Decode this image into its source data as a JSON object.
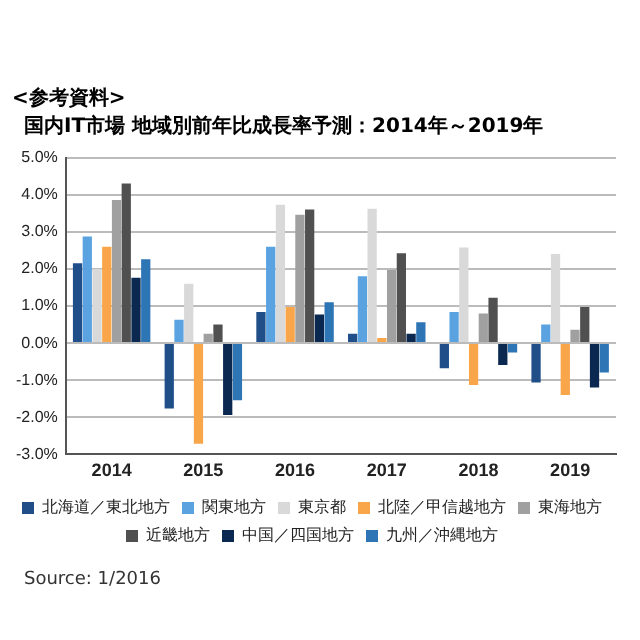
{
  "chart_data": {
    "type": "bar",
    "subtitle": "<参考資料>",
    "title": "国内IT市場 地域別前年比成長率予測：2014年～2019年",
    "categories": [
      "2014",
      "2015",
      "2016",
      "2017",
      "2018",
      "2019"
    ],
    "series": [
      {
        "name": "北海道／東北地方",
        "color": "#1f4e89",
        "values": [
          2.15,
          -1.76,
          0.84,
          0.25,
          -0.68,
          -1.06
        ]
      },
      {
        "name": "関東地方",
        "color": "#5ba3e0",
        "values": [
          2.87,
          0.63,
          2.6,
          1.8,
          0.84,
          0.5
        ]
      },
      {
        "name": "東京都",
        "color": "#d9d9d9",
        "values": [
          2.0,
          1.6,
          3.73,
          3.62,
          2.58,
          2.4
        ]
      },
      {
        "name": "北陸／甲信越地方",
        "color": "#f9a54a",
        "values": [
          2.6,
          -2.71,
          0.97,
          0.14,
          -1.13,
          -1.4
        ]
      },
      {
        "name": "東海地方",
        "color": "#a0a0a0",
        "values": [
          3.86,
          0.25,
          3.46,
          1.97,
          0.8,
          0.36
        ]
      },
      {
        "name": "近畿地方",
        "color": "#505050",
        "values": [
          4.3,
          0.5,
          3.6,
          2.42,
          1.22,
          0.97
        ]
      },
      {
        "name": "中国／四国地方",
        "color": "#0a2850",
        "values": [
          1.76,
          -1.94,
          0.77,
          0.25,
          -0.59,
          -1.2
        ]
      },
      {
        "name": "九州／沖縄地方",
        "color": "#2e75b6",
        "values": [
          2.26,
          -1.54,
          1.1,
          0.56,
          -0.25,
          -0.79
        ]
      }
    ],
    "ylim": [
      -3,
      5
    ],
    "yticks": [
      {
        "value": -3,
        "label": "-3.0%"
      },
      {
        "value": -2,
        "label": "-2.0%"
      },
      {
        "value": -1,
        "label": "-1.0%"
      },
      {
        "value": 0,
        "label": "0.0%"
      },
      {
        "value": 1,
        "label": "1.0%"
      },
      {
        "value": 2,
        "label": "2.0%"
      },
      {
        "value": 3,
        "label": "3.0%"
      },
      {
        "value": 4,
        "label": "4.0%"
      },
      {
        "value": 5,
        "label": "5.0%"
      }
    ],
    "grid": "y",
    "legend": "bottom",
    "annotations": [
      "Source: 1/2016"
    ]
  }
}
